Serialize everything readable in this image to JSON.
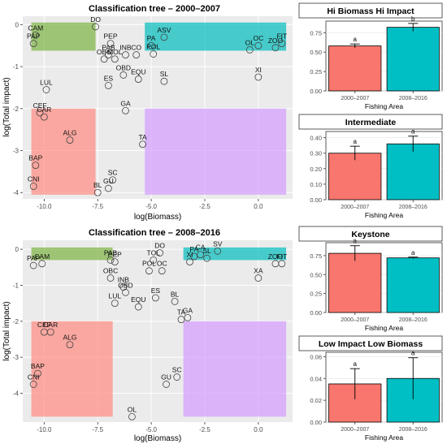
{
  "chart_data": [
    {
      "id": "tree1",
      "type": "scatter",
      "title": "Classification tree – 2000–2007",
      "xlabel": "log(Biomass)",
      "ylabel": "log(Total impact)",
      "xlim": [
        -11,
        1.6
      ],
      "ylim": [
        -4.15,
        0.2
      ],
      "xticks": [
        -10,
        -7.5,
        -5,
        -2.5,
        0
      ],
      "xtick_labels": [
        "-10.0",
        "-7.5",
        "-5.0",
        "-2.5",
        "0.0"
      ],
      "yticks": [
        0,
        -1,
        -2,
        -3,
        -4
      ],
      "ytick_labels": [
        "0",
        "-1",
        "-2",
        "-3",
        "-4"
      ],
      "regions": [
        {
          "color": "#7cb342",
          "x": [
            -10.6,
            -7.6
          ],
          "y": [
            -0.62,
            0.05
          ]
        },
        {
          "color": "#00bcbc",
          "x": [
            -5.3,
            1.3
          ],
          "y": [
            -0.62,
            0.05
          ]
        },
        {
          "color": "#ff8a80",
          "x": [
            -10.6,
            -7.6
          ],
          "y": [
            -4.05,
            -2.0
          ]
        },
        {
          "color": "#d39bff",
          "x": [
            -5.3,
            1.3
          ],
          "y": [
            -4.05,
            -2.0
          ]
        }
      ],
      "points": [
        {
          "label": "CAM",
          "x": -10.4,
          "y": -0.25,
          "dx": 0,
          "dy": -6
        },
        {
          "label": "PAP",
          "x": -10.5,
          "y": -0.45,
          "dx": 0,
          "dy": -6
        },
        {
          "label": "DO",
          "x": -7.6,
          "y": -0.05,
          "dx": 0,
          "dy": -6
        },
        {
          "label": "PEP",
          "x": -6.9,
          "y": -0.45,
          "dx": 0,
          "dy": -6
        },
        {
          "label": "PAB",
          "x": -7.0,
          "y": -0.72,
          "dx": 0,
          "dy": -6
        },
        {
          "label": "OBC",
          "x": -7.2,
          "y": -0.82,
          "dx": 0,
          "dy": -6
        },
        {
          "label": "MOL",
          "x": -6.7,
          "y": -0.82,
          "dx": 0,
          "dy": -6
        },
        {
          "label": "INB",
          "x": -6.2,
          "y": -0.72,
          "dx": 0,
          "dy": -6
        },
        {
          "label": "CO",
          "x": -5.7,
          "y": -0.72,
          "dx": 0,
          "dy": -6
        },
        {
          "label": "PA",
          "x": -5.0,
          "y": -0.5,
          "dx": 0,
          "dy": -6
        },
        {
          "label": "POL",
          "x": -4.9,
          "y": -0.7,
          "dx": 0,
          "dy": -6
        },
        {
          "label": "ASV",
          "x": -4.4,
          "y": -0.3,
          "dx": 0,
          "dy": -6
        },
        {
          "label": "OBD",
          "x": -6.3,
          "y": -1.2,
          "dx": 0,
          "dy": -6
        },
        {
          "label": "EQU",
          "x": -5.6,
          "y": -1.3,
          "dx": 0,
          "dy": -6
        },
        {
          "label": "SL",
          "x": -4.4,
          "y": -1.35,
          "dx": 0,
          "dy": -6
        },
        {
          "label": "ES",
          "x": -7.0,
          "y": -1.45,
          "dx": 0,
          "dy": -6
        },
        {
          "label": "LUL",
          "x": -9.9,
          "y": -1.55,
          "dx": 0,
          "dy": -6
        },
        {
          "label": "CEF",
          "x": -10.2,
          "y": -2.1,
          "dx": 0,
          "dy": -6
        },
        {
          "label": "CAR",
          "x": -10.0,
          "y": -2.2,
          "dx": 0,
          "dy": -6
        },
        {
          "label": "GA",
          "x": -6.2,
          "y": -2.05,
          "dx": 0,
          "dy": -6
        },
        {
          "label": "ALG",
          "x": -8.8,
          "y": -2.75,
          "dx": 0,
          "dy": -6
        },
        {
          "label": "TA",
          "x": -5.4,
          "y": -2.85,
          "dx": 0,
          "dy": -6
        },
        {
          "label": "BAP",
          "x": -10.4,
          "y": -3.35,
          "dx": 0,
          "dy": -6
        },
        {
          "label": "SC",
          "x": -6.8,
          "y": -3.7,
          "dx": 0,
          "dy": -6
        },
        {
          "label": "CNI",
          "x": -10.5,
          "y": -3.85,
          "dx": 0,
          "dy": -6
        },
        {
          "label": "GU",
          "x": -7.0,
          "y": -3.9,
          "dx": 0,
          "dy": -6
        },
        {
          "label": "BL",
          "x": -7.5,
          "y": -4.0,
          "dx": 0,
          "dy": -6
        },
        {
          "label": "OC",
          "x": 0.0,
          "y": -0.5,
          "dx": 0,
          "dy": -6
        },
        {
          "label": "OL",
          "x": -0.4,
          "y": -0.6,
          "dx": 0,
          "dy": -6
        },
        {
          "label": "ZOO",
          "x": 0.8,
          "y": -0.55,
          "dx": 0,
          "dy": -6
        },
        {
          "label": "FIT",
          "x": 1.1,
          "y": -0.45,
          "dx": 0,
          "dy": -6
        },
        {
          "label": "XI",
          "x": 0.0,
          "y": -1.25,
          "dx": 0,
          "dy": -6
        }
      ]
    },
    {
      "id": "tree2",
      "type": "scatter",
      "title": "Classification tree – 2008–2016",
      "xlabel": "log(Biomass)",
      "ylabel": "log(Total impact)",
      "xlim": [
        -11,
        1.6
      ],
      "ylim": [
        -4.8,
        0.25
      ],
      "xticks": [
        -10,
        -7.5,
        -5,
        -2.5,
        0
      ],
      "xtick_labels": [
        "-10.0",
        "-7.5",
        "-5.0",
        "-2.5",
        "0.0"
      ],
      "yticks": [
        0,
        -1,
        -2,
        -3,
        -4
      ],
      "ytick_labels": [
        "0",
        "-1",
        "-2",
        "-3",
        "-4"
      ],
      "regions": [
        {
          "color": "#7cb342",
          "x": [
            -10.6,
            -6.8
          ],
          "y": [
            -0.3,
            0.05
          ]
        },
        {
          "color": "#00bcbc",
          "x": [
            -3.5,
            1.3
          ],
          "y": [
            -0.3,
            0.05
          ]
        },
        {
          "color": "#ff8a80",
          "x": [
            -10.6,
            -6.8
          ],
          "y": [
            -4.65,
            -2.0
          ]
        },
        {
          "color": "#d39bff",
          "x": [
            -3.5,
            1.3
          ],
          "y": [
            -4.65,
            -2.0
          ]
        }
      ],
      "points": [
        {
          "label": "CAM",
          "x": -10.1,
          "y": -0.4,
          "dx": 0,
          "dy": -6
        },
        {
          "label": "PAP",
          "x": -10.5,
          "y": -0.45,
          "dx": 0,
          "dy": -6
        },
        {
          "label": "PAB",
          "x": -6.9,
          "y": -0.3,
          "dx": 0,
          "dy": -6
        },
        {
          "label": "PEP",
          "x": -6.7,
          "y": -0.35,
          "dx": 0,
          "dy": -6
        },
        {
          "label": "DO",
          "x": -4.6,
          "y": -0.1,
          "dx": 0,
          "dy": -6
        },
        {
          "label": "TOL",
          "x": -4.9,
          "y": -0.3,
          "dx": 0,
          "dy": -6
        },
        {
          "label": "POL",
          "x": -5.1,
          "y": -0.6,
          "dx": 0,
          "dy": -6
        },
        {
          "label": "OC",
          "x": -4.5,
          "y": -0.6,
          "dx": 0,
          "dy": -6
        },
        {
          "label": "SV",
          "x": -1.9,
          "y": -0.05,
          "dx": 0,
          "dy": -6
        },
        {
          "label": "PA",
          "x": -3.0,
          "y": -0.2,
          "dx": 0,
          "dy": -6
        },
        {
          "label": "CA",
          "x": -2.7,
          "y": -0.15,
          "dx": 0,
          "dy": -6
        },
        {
          "label": "SL",
          "x": -2.4,
          "y": -0.25,
          "dx": 0,
          "dy": -6
        },
        {
          "label": "XI",
          "x": -3.2,
          "y": -0.35,
          "dx": 0,
          "dy": -6
        },
        {
          "label": "ZOO",
          "x": 0.8,
          "y": -0.4,
          "dx": 0,
          "dy": -6
        },
        {
          "label": "FIT",
          "x": 1.1,
          "y": -0.4,
          "dx": 0,
          "dy": -6
        },
        {
          "label": "XA",
          "x": 0.0,
          "y": -0.8,
          "dx": 0,
          "dy": -6
        },
        {
          "label": "OBC",
          "x": -6.9,
          "y": -0.8,
          "dx": 0,
          "dy": -6
        },
        {
          "label": "INB",
          "x": -6.3,
          "y": -1.05,
          "dx": 0,
          "dy": -6
        },
        {
          "label": "OBD",
          "x": -6.2,
          "y": -1.2,
          "dx": 0,
          "dy": -6
        },
        {
          "label": "LUL",
          "x": -6.7,
          "y": -1.5,
          "dx": 0,
          "dy": -6
        },
        {
          "label": "EQU",
          "x": -5.6,
          "y": -1.6,
          "dx": 0,
          "dy": -6
        },
        {
          "label": "ES",
          "x": -4.8,
          "y": -1.35,
          "dx": 0,
          "dy": -6
        },
        {
          "label": "BL",
          "x": -3.9,
          "y": -1.45,
          "dx": 0,
          "dy": -6
        },
        {
          "label": "TA",
          "x": -3.6,
          "y": -1.95,
          "dx": 0,
          "dy": -6
        },
        {
          "label": "GA",
          "x": -3.3,
          "y": -1.9,
          "dx": 0,
          "dy": -6
        },
        {
          "label": "CEF",
          "x": -10.0,
          "y": -2.3,
          "dx": 0,
          "dy": -6
        },
        {
          "label": "CAR",
          "x": -9.7,
          "y": -2.3,
          "dx": 0,
          "dy": -6
        },
        {
          "label": "ALG",
          "x": -8.8,
          "y": -2.65,
          "dx": 0,
          "dy": -6
        },
        {
          "label": "BAP",
          "x": -10.3,
          "y": -3.45,
          "dx": 0,
          "dy": -6
        },
        {
          "label": "CNI",
          "x": -10.5,
          "y": -3.75,
          "dx": 0,
          "dy": -6
        },
        {
          "label": "SC",
          "x": -3.8,
          "y": -3.55,
          "dx": 0,
          "dy": -6
        },
        {
          "label": "GU",
          "x": -4.3,
          "y": -3.75,
          "dx": 0,
          "dy": -6
        },
        {
          "label": "OL",
          "x": -5.9,
          "y": -4.65,
          "dx": 0,
          "dy": -6
        }
      ]
    },
    {
      "id": "bar1",
      "type": "bar",
      "title": "Hi Biomass Hi Impact",
      "xlabel": "Fishing Area",
      "categories": [
        "2000–2007",
        "2008–2016"
      ],
      "values": [
        0.58,
        0.82
      ],
      "errors": [
        0.025,
        0.05
      ],
      "letters": [
        "a",
        "b"
      ],
      "colors": [
        "#f8766d",
        "#00bfc4"
      ],
      "ylim": [
        0,
        0.9
      ],
      "yticks": [
        0,
        0.25,
        0.5,
        0.75
      ],
      "ytick_labels": [
        "0.00",
        "0.25",
        "0.50",
        "0.75"
      ]
    },
    {
      "id": "bar2",
      "type": "bar",
      "title": "Intermediate",
      "xlabel": "Fishing Area",
      "categories": [
        "2000–2007",
        "2008–2016"
      ],
      "values": [
        0.3,
        0.36
      ],
      "errors": [
        0.045,
        0.05
      ],
      "letters": [
        "a",
        "a"
      ],
      "colors": [
        "#f8766d",
        "#00bfc4"
      ],
      "ylim": [
        0,
        0.44
      ],
      "yticks": [
        0,
        0.1,
        0.2,
        0.3,
        0.4
      ],
      "ytick_labels": [
        "0.00",
        "0.10",
        "0.20",
        "0.30",
        "0.40"
      ]
    },
    {
      "id": "bar3",
      "type": "bar",
      "title": "Keystone",
      "xlabel": "Fishing Area",
      "categories": [
        "2000–2007",
        "2008–2016"
      ],
      "values": [
        0.78,
        0.72
      ],
      "errors": [
        0.1,
        0.01
      ],
      "letters": [
        "a",
        "a"
      ],
      "colors": [
        "#f8766d",
        "#00bfc4"
      ],
      "ylim": [
        0,
        0.92
      ],
      "yticks": [
        0,
        0.25,
        0.5,
        0.75
      ],
      "ytick_labels": [
        "0.00",
        "0.25",
        "0.50",
        "0.75"
      ]
    },
    {
      "id": "bar4",
      "type": "bar",
      "title": "Low Impact Low Biomass",
      "xlabel": "Fishing Area",
      "categories": [
        "2000–2007",
        "2008–2016"
      ],
      "values": [
        0.035,
        0.04
      ],
      "errors": [
        0.014,
        0.019
      ],
      "letters": [
        "a",
        "a"
      ],
      "colors": [
        "#f8766d",
        "#00bfc4"
      ],
      "ylim": [
        0,
        0.064
      ],
      "yticks": [
        0,
        0.02,
        0.04,
        0.06
      ],
      "ytick_labels": [
        "0.00",
        "0.02",
        "0.04",
        "0.06"
      ]
    }
  ]
}
